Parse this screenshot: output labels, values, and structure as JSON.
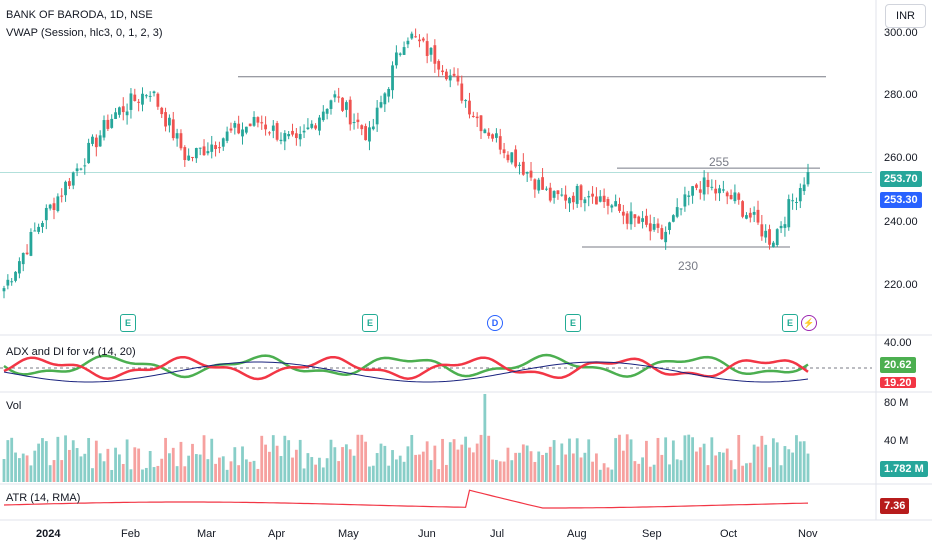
{
  "header": {
    "symbol_title": "BANK OF BARODA, 1D, NSE",
    "vwap_label": "VWAP (Session, hlc3, 0, 1, 2, 3)",
    "currency_button": "INR"
  },
  "price_axis": {
    "ticks": [
      "300.00",
      "280.00",
      "260.00",
      "240.00",
      "220.00"
    ],
    "last_price_tag": "253.70",
    "vwap_tag": "253.30",
    "last_price_color": "#26a69a",
    "vwap_color": "#2962ff"
  },
  "annotations": {
    "resistance_label": "255",
    "support_label": "230"
  },
  "events": [
    {
      "icon": "earnings-icon",
      "text": "E"
    },
    {
      "icon": "earnings-icon",
      "text": "E"
    },
    {
      "icon": "dividend-icon",
      "text": "D"
    },
    {
      "icon": "earnings-icon",
      "text": "E"
    },
    {
      "icon": "earnings-icon",
      "text": "E"
    },
    {
      "icon": "split-icon",
      "text": "⚡"
    }
  ],
  "adx_panel": {
    "label": "ADX and DI for v4 (14, 20)",
    "ticks": [
      "40.00"
    ],
    "di_plus_tag": "20.62",
    "di_minus_tag": "19.20",
    "di_plus_color": "#4caf50",
    "di_minus_color": "#f23645",
    "adx_color": "#1a237e"
  },
  "volume_panel": {
    "label": "Vol",
    "ticks": [
      "80 M",
      "40 M"
    ],
    "value_tag": "1.782 M",
    "up_color": "#26a69a",
    "down_color": "#ef5350"
  },
  "atr_panel": {
    "label": "ATR (14, RMA)",
    "value_tag": "7.36",
    "line_color": "#f23645"
  },
  "time_axis": {
    "labels": [
      "2024",
      "Feb",
      "Mar",
      "Apr",
      "May",
      "Jun",
      "Jul",
      "Aug",
      "Sep",
      "Oct",
      "Nov"
    ]
  },
  "chart_data": {
    "type": "candlestick",
    "symbol": "BANK OF BARODA",
    "interval": "1D",
    "exchange": "NSE",
    "ylim": [
      210,
      302
    ],
    "horizontal_levels": [
      284,
      255,
      230
    ],
    "last_close": 253.7,
    "vwap": 253.3,
    "anchors": [
      {
        "month": "2024",
        "close": 217
      },
      {
        "month": "Jan mid",
        "close": 238
      },
      {
        "month": "Feb",
        "close": 255
      },
      {
        "month": "Feb mid",
        "close": 272
      },
      {
        "month": "Mar",
        "close": 280
      },
      {
        "month": "Mar mid",
        "close": 258
      },
      {
        "month": "Apr",
        "close": 265
      },
      {
        "month": "Apr mid",
        "close": 270
      },
      {
        "month": "May",
        "close": 262
      },
      {
        "month": "May mid",
        "close": 278
      },
      {
        "month": "Jun",
        "close": 265
      },
      {
        "month": "Jun peak",
        "close": 298
      },
      {
        "month": "Jun mid",
        "close": 288
      },
      {
        "month": "Jul",
        "close": 270
      },
      {
        "month": "Jul mid",
        "close": 258
      },
      {
        "month": "Aug",
        "close": 245
      },
      {
        "month": "Aug mid",
        "close": 248
      },
      {
        "month": "Sep",
        "close": 240
      },
      {
        "month": "Sep mid",
        "close": 233
      },
      {
        "month": "Oct",
        "close": 250
      },
      {
        "month": "Oct mid",
        "close": 245
      },
      {
        "month": "Oct low",
        "close": 232
      },
      {
        "month": "Nov",
        "close": 254
      }
    ]
  }
}
